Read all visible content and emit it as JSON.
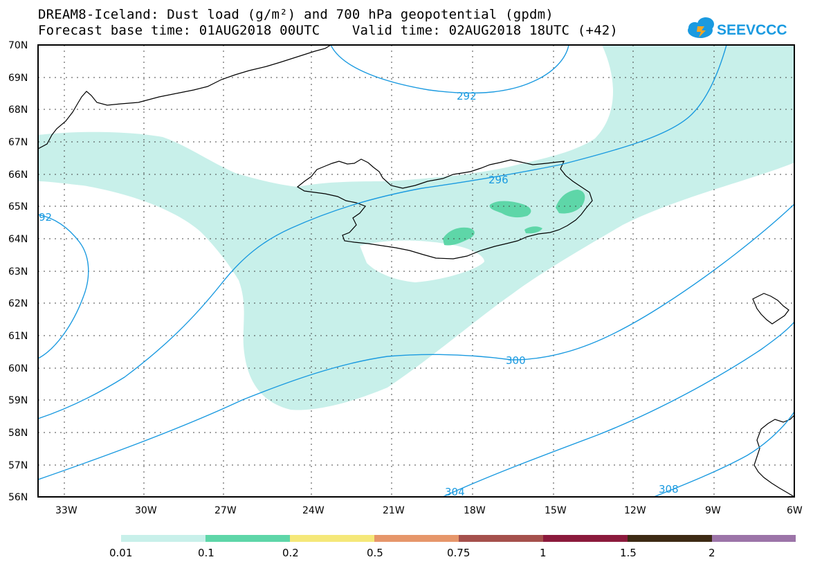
{
  "header": {
    "title_line1": "DREAM8-Iceland: Dust load (g/m²) and 700 hPa geopotential (gpdm)",
    "title_line2": "Forecast base time: 01AUG2018 00UTC    Valid time: 02AUG2018 18UTC (+42)"
  },
  "logo": {
    "text": "SEEVCCC",
    "color": "#1a9ae0",
    "accent": "#f5a623",
    "icon": "cloud-icon"
  },
  "map": {
    "lon_range": [
      -34.5,
      -6
    ],
    "lat_range": [
      56,
      70
    ],
    "lat_ticks": [
      "70N",
      "69N",
      "68N",
      "67N",
      "66N",
      "65N",
      "64N",
      "63N",
      "62N",
      "61N",
      "60N",
      "59N",
      "58N",
      "57N",
      "56N"
    ],
    "lon_ticks": [
      "33W",
      "30W",
      "27W",
      "24W",
      "21W",
      "18W",
      "15W",
      "12W",
      "9W",
      "6W"
    ],
    "grid_lines": true,
    "coastline_color": "#000000",
    "contour_color": "#1a9ae0",
    "contour_labels": [
      "292",
      "296",
      "300",
      "304",
      "308",
      "92"
    ],
    "dust_fill_low": "#c8f0ea",
    "dust_fill_mid": "#5ed6a8"
  },
  "legend": {
    "colors": [
      "#c8f0ea",
      "#5ed6a8",
      "#f5e879",
      "#e6966a",
      "#a5504c",
      "#8b1a3c",
      "#3d2a14",
      "#9c74a8"
    ],
    "labels": [
      "0.01",
      "0.1",
      "0.2",
      "0.5",
      "0.75",
      "1",
      "1.5",
      "2"
    ]
  }
}
